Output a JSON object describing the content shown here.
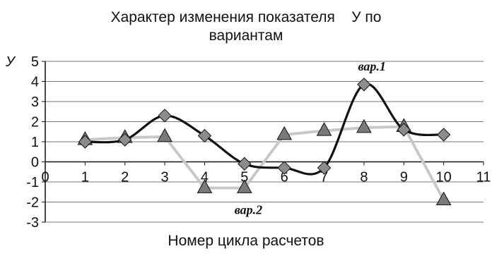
{
  "chart_data": {
    "type": "line",
    "title_line1": "Характер изменения показателя    У по",
    "title_line2": "вариантам",
    "xlabel": "Номер цикла расчетов",
    "ylabel": "У",
    "xlim": [
      0,
      11
    ],
    "ylim": [
      -3,
      5
    ],
    "x_ticks": [
      "0",
      "1",
      "2",
      "3",
      "4",
      "5",
      "6",
      "7",
      "8",
      "9",
      "10",
      "11"
    ],
    "y_ticks": [
      "5",
      "4",
      "3",
      "2",
      "1",
      "0",
      "-1",
      "-2",
      "-3"
    ],
    "grid": "horizontal",
    "legend": "none",
    "series": [
      {
        "name": "вар.1",
        "marker": "diamond",
        "color": "#111111",
        "x": [
          1,
          2,
          3,
          4,
          5,
          6,
          7,
          8,
          9,
          10
        ],
        "values": [
          1.0,
          1.1,
          2.3,
          1.3,
          -0.1,
          -0.3,
          -0.3,
          3.85,
          1.6,
          1.35
        ]
      },
      {
        "name": "вар.2",
        "marker": "triangle",
        "color": "#c8c8c8",
        "x": [
          1,
          2,
          3,
          4,
          5,
          6,
          7,
          8,
          9,
          10
        ],
        "values": [
          1.1,
          1.2,
          1.25,
          -1.3,
          -1.3,
          1.35,
          1.55,
          1.7,
          1.75,
          -1.9
        ]
      }
    ],
    "annotations": [
      {
        "text": "вар.1",
        "x": 7.85,
        "y": 4.55
      },
      {
        "text": "вар.2",
        "x": 4.75,
        "y": -2.6
      }
    ]
  }
}
